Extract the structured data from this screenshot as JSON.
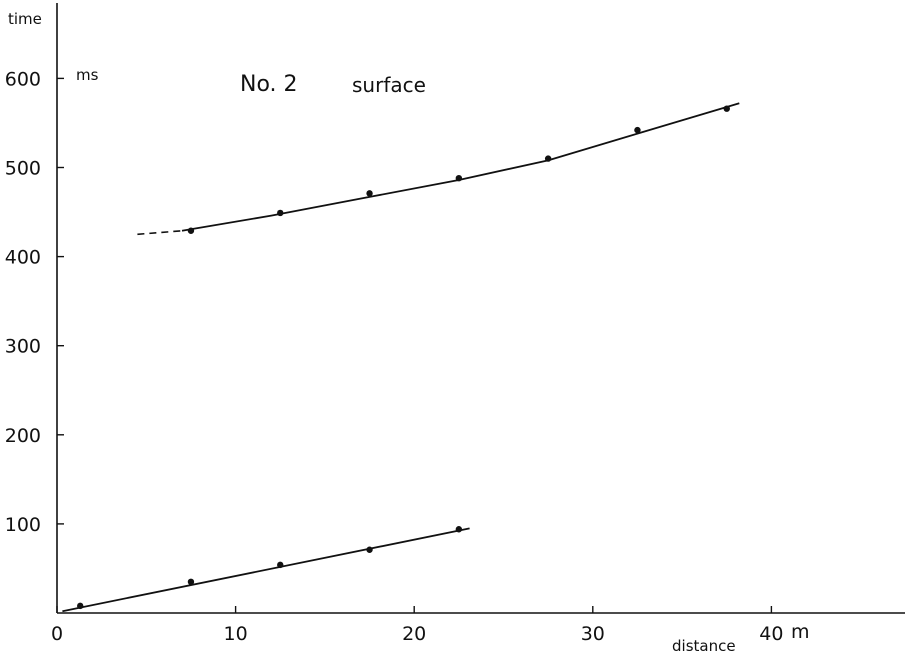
{
  "chart_data": {
    "type": "scatter",
    "title": "No. 2",
    "subtitle": "surface",
    "xlabel": "distance",
    "ylabel": "time",
    "x_unit": "m",
    "y_unit": "ms",
    "xlim": [
      0,
      47
    ],
    "ylim": [
      0,
      660
    ],
    "x_ticks": [
      0,
      10,
      20,
      30,
      40
    ],
    "y_ticks": [
      100,
      200,
      300,
      400,
      500,
      600
    ],
    "grid": false,
    "series": [
      {
        "points": [
          {
            "x": 7.5,
            "y": 429
          },
          {
            "x": 12.5,
            "y": 449
          },
          {
            "x": 17.5,
            "y": 471
          },
          {
            "x": 22.5,
            "y": 488
          },
          {
            "x": 27.5,
            "y": 510
          },
          {
            "x": 32.5,
            "y": 542
          },
          {
            "x": 37.5,
            "y": 566
          }
        ],
        "fit": [
          [
            7,
            429
          ],
          [
            12,
            446
          ],
          [
            17.5,
            467
          ],
          [
            22.5,
            486
          ],
          [
            27.5,
            508
          ],
          [
            32.5,
            538
          ],
          [
            38.2,
            572
          ]
        ],
        "fit_extension_dashed": [
          [
            4.5,
            425
          ],
          [
            7,
            429
          ]
        ]
      },
      {
        "points": [
          {
            "x": 1.3,
            "y": 8
          },
          {
            "x": 7.5,
            "y": 35
          },
          {
            "x": 12.5,
            "y": 54
          },
          {
            "x": 17.5,
            "y": 71
          },
          {
            "x": 22.5,
            "y": 94
          }
        ],
        "fit": [
          [
            0.3,
            2
          ],
          [
            23.1,
            95
          ]
        ]
      }
    ]
  }
}
